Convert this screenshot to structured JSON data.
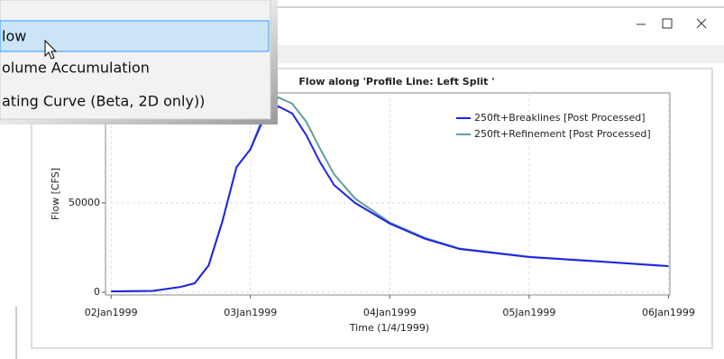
{
  "menu": {
    "items": [
      "low",
      "olume Accumulation",
      "ating Curve (Beta, 2D only))"
    ]
  },
  "chart_data": {
    "type": "line",
    "title": "Flow along 'Profile Line: Left Split '",
    "x_label": "Time (1/4/1999)",
    "y_label": "Flow [CFS]",
    "x": [
      2.0,
      2.3,
      2.5,
      2.6,
      2.7,
      2.8,
      2.9,
      3.0,
      3.1,
      3.2,
      3.3,
      3.4,
      3.5,
      3.6,
      3.75,
      4.0,
      4.25,
      4.5,
      5.0,
      5.5,
      6.0
    ],
    "series": [
      {
        "name": "250ft+Breaklines [Post Processed]",
        "color": "#2222e6",
        "values": [
          500,
          800,
          3000,
          5000,
          15000,
          40000,
          70000,
          80000,
          98000,
          104000,
          100000,
          88000,
          72700,
          60000,
          50000,
          38400,
          30000,
          24200,
          19700,
          17200,
          14600
        ]
      },
      {
        "name": "250ft+Refinement [Post Processed]",
        "color": "#5f9ea0",
        "values": [
          500,
          800,
          3000,
          5000,
          15000,
          40000,
          70000,
          80000,
          100000,
          109000,
          105500,
          95500,
          80300,
          66000,
          52500,
          39000,
          30500,
          24500,
          19900,
          17300,
          14700
        ]
      }
    ],
    "xlim": [
      1.96,
      6.01
    ],
    "xticks": [
      {
        "value": 2,
        "label": "02Jan1999"
      },
      {
        "value": 3,
        "label": "03Jan1999"
      },
      {
        "value": 4,
        "label": "04Jan1999"
      },
      {
        "value": 5,
        "label": "05Jan1999"
      },
      {
        "value": 6,
        "label": "06Jan1999"
      }
    ],
    "ylim": [
      -1500,
      111500
    ],
    "yticks": [
      0,
      50000
    ],
    "grid": true,
    "legend": "upper right"
  }
}
